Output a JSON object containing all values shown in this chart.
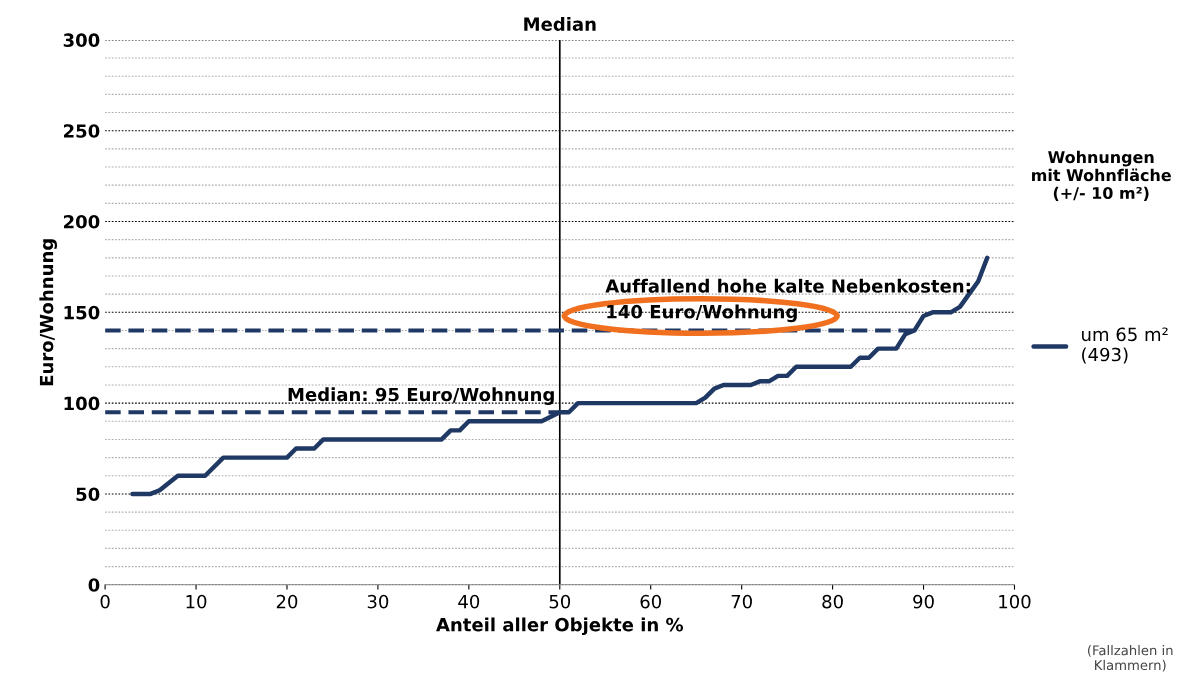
{
  "chart_data": {
    "type": "line",
    "xlabel": "Anteil aller Objekte in %",
    "ylabel": "Euro/Wohnung",
    "legend_title": "Wohnungen\nmit Wohnfläche\n(+/- 10 m²)",
    "legend": "right",
    "grid": "y",
    "xlim": [
      0,
      100
    ],
    "xticks": [
      0,
      10,
      20,
      30,
      40,
      50,
      60,
      70,
      80,
      90,
      100
    ],
    "ylim": [
      0,
      300
    ],
    "yticks": [
      0,
      {
        "value": 10,
        "label": null
      },
      {
        "value": 20,
        "label": null
      },
      {
        "value": 30,
        "label": null
      },
      {
        "value": 40,
        "label": null
      },
      50,
      {
        "value": 60,
        "label": null
      },
      {
        "value": 70,
        "label": null
      },
      {
        "value": 80,
        "label": null
      },
      {
        "value": 90,
        "label": null
      },
      100,
      {
        "value": 110,
        "label": null
      },
      {
        "value": 120,
        "label": null
      },
      {
        "value": 130,
        "label": null
      },
      {
        "value": 140,
        "label": null
      },
      150,
      {
        "value": 160,
        "label": null
      },
      {
        "value": 170,
        "label": null
      },
      {
        "value": 180,
        "label": null
      },
      {
        "value": 190,
        "label": null
      },
      200,
      {
        "value": 210,
        "label": null
      },
      {
        "value": 220,
        "label": null
      },
      {
        "value": 230,
        "label": null
      },
      {
        "value": 240,
        "label": null
      },
      250,
      {
        "value": 260,
        "label": null
      },
      {
        "value": 270,
        "label": null
      },
      {
        "value": 280,
        "label": null
      },
      {
        "value": 290,
        "label": null
      },
      300
    ],
    "series": [
      {
        "name": "um 65 m²\n(493)",
        "color": "#1f3864",
        "x": [
          3,
          5,
          6,
          8,
          11,
          13,
          20,
          21,
          23,
          24,
          37,
          38,
          39,
          40,
          48,
          50,
          51,
          52,
          65,
          66,
          67,
          68,
          71,
          72,
          73,
          74,
          75,
          76,
          82,
          83,
          84,
          85,
          87,
          88,
          89,
          90,
          91,
          93,
          94,
          95,
          96,
          97
        ],
        "values": [
          50,
          50,
          52,
          60,
          60,
          70,
          70,
          75,
          75,
          80,
          80,
          85,
          85,
          90,
          90,
          95,
          95,
          100,
          100,
          103,
          108,
          110,
          110,
          112,
          112,
          115,
          115,
          120,
          120,
          125,
          125,
          130,
          130,
          138,
          140,
          148,
          150,
          150,
          153,
          160,
          167,
          180
        ]
      },
      {
        "color": "#1f3864",
        "line_style": "dashed",
        "x": [
          0,
          89
        ],
        "values": [
          140,
          140
        ]
      },
      {
        "color": "#1f3864",
        "line_style": "dashed",
        "x": [
          0,
          50
        ],
        "values": [
          95,
          95
        ]
      }
    ],
    "ref_lines": [
      {
        "axis": "x",
        "value": 50,
        "label": "Median",
        "color": "#000000"
      }
    ],
    "annotations": [
      "Median: 95 Euro/Wohnung",
      "Auffallend hohe kalte Nebenkosten:\n140 Euro/Wohnung",
      "(Fallzahlen in\nKlammern)"
    ]
  }
}
